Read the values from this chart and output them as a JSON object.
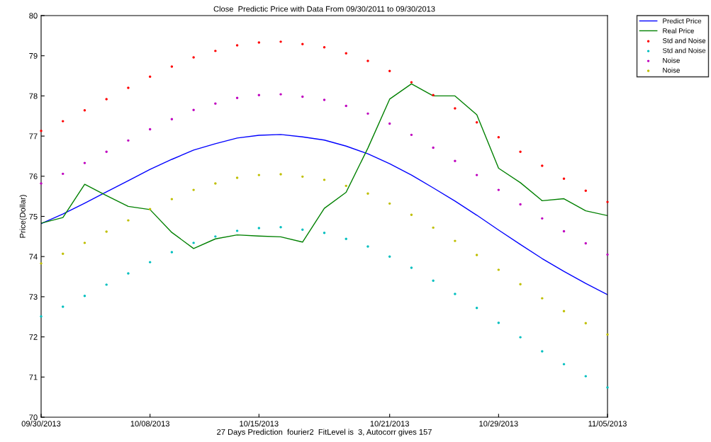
{
  "chart_data": {
    "type": "line",
    "title": "Close  Predictic Price with Data From 09/30/2011 to 09/30/2013",
    "xlabel": "27 Days Prediction  fourier2  FitLevel is  3, Autocorr gives 157",
    "ylabel": "Price(Dollar)",
    "categories": [
      "09/30/2013",
      null,
      null,
      null,
      null,
      "10/08/2013",
      null,
      null,
      null,
      null,
      "10/15/2013",
      null,
      null,
      null,
      null,
      null,
      "10/21/2013",
      null,
      null,
      null,
      null,
      "10/29/2013",
      null,
      null,
      null,
      null,
      "11/05/2013"
    ],
    "ylim": [
      70,
      80
    ],
    "yticks": [
      70,
      71,
      72,
      73,
      74,
      75,
      76,
      77,
      78,
      79,
      80
    ],
    "grid": false,
    "legend": "top right",
    "series": [
      {
        "name": "Predict Price",
        "color": "#0000ff",
        "marker": "none",
        "values": [
          74.82,
          75.06,
          75.33,
          75.61,
          75.89,
          76.17,
          76.42,
          76.65,
          76.81,
          76.95,
          77.02,
          77.04,
          76.98,
          76.9,
          76.75,
          76.56,
          76.31,
          76.03,
          75.71,
          75.38,
          75.03,
          74.66,
          74.3,
          73.95,
          73.63,
          73.33,
          73.05
        ]
      },
      {
        "name": "Real Price",
        "color": "#008000",
        "marker": "none",
        "values": [
          74.83,
          74.97,
          75.8,
          75.52,
          75.25,
          75.17,
          74.6,
          74.2,
          74.44,
          74.54,
          74.51,
          74.49,
          74.36,
          75.2,
          75.6,
          76.7,
          77.92,
          78.3,
          78.0,
          78.0,
          77.53,
          76.2,
          75.84,
          75.39,
          75.44,
          75.14,
          75.02
        ]
      },
      {
        "name": "Std and Noise",
        "type": "scatter",
        "color": "#ff0000",
        "marker": "circle",
        "values": [
          77.13,
          77.37,
          77.64,
          77.92,
          78.2,
          78.48,
          78.73,
          78.96,
          79.12,
          79.26,
          79.33,
          79.35,
          79.29,
          79.21,
          79.06,
          78.87,
          78.62,
          78.34,
          78.02,
          77.69,
          77.34,
          76.97,
          76.61,
          76.26,
          75.94,
          75.64,
          75.36
        ]
      },
      {
        "name": "Std and Noise",
        "type": "scatter",
        "color": "#00bfbf",
        "marker": "circle",
        "values": [
          72.51,
          72.75,
          73.02,
          73.3,
          73.58,
          73.86,
          74.11,
          74.34,
          74.5,
          74.64,
          74.71,
          74.73,
          74.67,
          74.59,
          74.44,
          74.25,
          74.0,
          73.72,
          73.4,
          73.07,
          72.72,
          72.35,
          71.99,
          71.64,
          71.32,
          71.02,
          70.74
        ]
      },
      {
        "name": "Noise",
        "type": "scatter",
        "color": "#bf00bf",
        "marker": "circle",
        "values": [
          75.82,
          76.06,
          76.33,
          76.61,
          76.89,
          77.17,
          77.42,
          77.65,
          77.81,
          77.95,
          78.02,
          78.04,
          77.98,
          77.9,
          77.75,
          77.56,
          77.31,
          77.03,
          76.71,
          76.38,
          76.03,
          75.66,
          75.3,
          74.95,
          74.63,
          74.33,
          74.05
        ]
      },
      {
        "name": "Noise",
        "type": "scatter",
        "color": "#bfbf00",
        "marker": "circle",
        "values": [
          73.83,
          74.07,
          74.34,
          74.62,
          74.9,
          75.18,
          75.43,
          75.66,
          75.82,
          75.96,
          76.03,
          76.05,
          75.99,
          75.91,
          75.76,
          75.57,
          75.32,
          75.04,
          74.72,
          74.39,
          74.04,
          73.67,
          73.31,
          72.96,
          72.64,
          72.34,
          72.06
        ]
      }
    ]
  }
}
